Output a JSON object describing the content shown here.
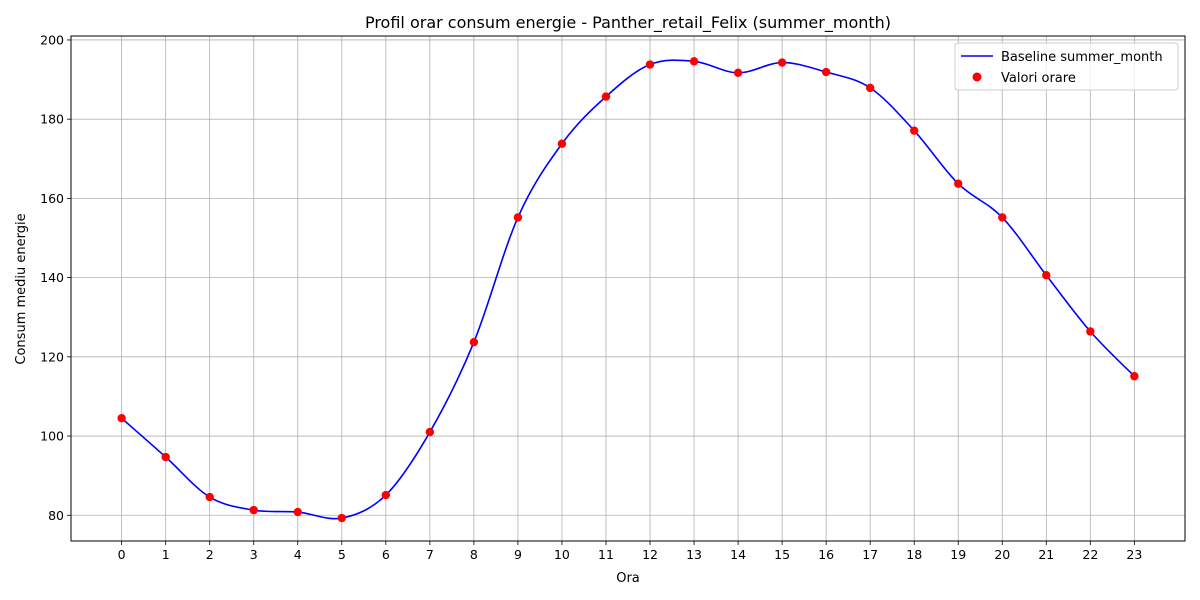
{
  "chart_data": {
    "type": "line",
    "title": "Profil orar consum energie - Panther_retail_Felix (summer_month)",
    "xlabel": "Ora",
    "ylabel": "Consum mediu energie",
    "x": [
      0,
      1,
      2,
      3,
      4,
      5,
      6,
      7,
      8,
      9,
      10,
      11,
      12,
      13,
      14,
      15,
      16,
      17,
      18,
      19,
      20,
      21,
      22,
      23
    ],
    "x_tick_labels": [
      "0",
      "1",
      "2",
      "3",
      "4",
      "5",
      "6",
      "7",
      "8",
      "9",
      "10",
      "11",
      "12",
      "13",
      "14",
      "15",
      "16",
      "17",
      "18",
      "19",
      "20",
      "21",
      "22",
      "23"
    ],
    "xlim": [
      -1.15,
      24.15
    ],
    "ylim": [
      73.5,
      201
    ],
    "y_ticks": [
      80,
      100,
      120,
      140,
      160,
      180,
      200
    ],
    "y_tick_labels": [
      "80",
      "100",
      "120",
      "140",
      "160",
      "180",
      "200"
    ],
    "grid": true,
    "legend_position": "top-right",
    "series": [
      {
        "name": "Baseline summer_month",
        "style": "smooth-line",
        "color": "#0000ff",
        "values": [
          104.5,
          94.7,
          84.6,
          81.3,
          80.8,
          79.3,
          85.1,
          101.0,
          123.7,
          155.2,
          173.8,
          185.7,
          193.8,
          194.6,
          191.7,
          194.3,
          191.9,
          187.9,
          177.1,
          163.7,
          155.2,
          140.6,
          126.4,
          115.1
        ]
      },
      {
        "name": "Valori orare",
        "style": "scatter",
        "color": "#ff0000",
        "values": [
          104.5,
          94.7,
          84.6,
          81.3,
          80.8,
          79.3,
          85.1,
          101.0,
          123.7,
          155.2,
          173.8,
          185.7,
          193.8,
          194.6,
          191.7,
          194.3,
          191.9,
          187.9,
          177.1,
          163.7,
          155.2,
          140.6,
          126.4,
          115.1
        ]
      }
    ]
  }
}
